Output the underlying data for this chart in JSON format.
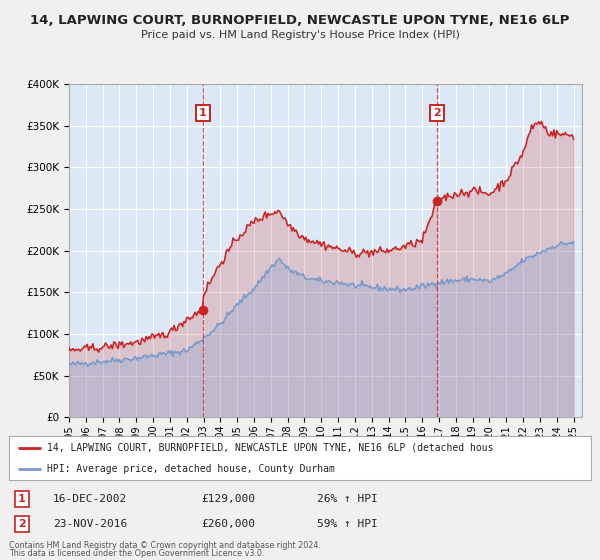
{
  "title": "14, LAPWING COURT, BURNOPFIELD, NEWCASTLE UPON TYNE, NE16 6LP",
  "subtitle": "Price paid vs. HM Land Registry's House Price Index (HPI)",
  "fig_bg_color": "#f0f0f0",
  "plot_bg_color": "#dce8f5",
  "grid_color": "#ffffff",
  "red_line_color": "#cc2222",
  "blue_line_color": "#7799cc",
  "purchase1_date_num": 2002.96,
  "purchase1_price": 129000,
  "purchase1_label": "1",
  "purchase1_date_str": "16-DEC-2002",
  "purchase1_hpi_str": "26% ↑ HPI",
  "purchase2_date_num": 2016.9,
  "purchase2_price": 260000,
  "purchase2_label": "2",
  "purchase2_date_str": "23-NOV-2016",
  "purchase2_hpi_str": "59% ↑ HPI",
  "purchase1_price_str": "£129,000",
  "purchase2_price_str": "£260,000",
  "ylim": [
    0,
    400000
  ],
  "xlim_start": 1995.0,
  "xlim_end": 2025.5,
  "ylabel_ticks": [
    0,
    50000,
    100000,
    150000,
    200000,
    250000,
    300000,
    350000,
    400000
  ],
  "ylabel_labels": [
    "£0",
    "£50K",
    "£100K",
    "£150K",
    "£200K",
    "£250K",
    "£300K",
    "£350K",
    "£400K"
  ],
  "xtick_years": [
    1995,
    1996,
    1997,
    1998,
    1999,
    2000,
    2001,
    2002,
    2003,
    2004,
    2005,
    2006,
    2007,
    2008,
    2009,
    2010,
    2011,
    2012,
    2013,
    2014,
    2015,
    2016,
    2017,
    2018,
    2019,
    2020,
    2021,
    2022,
    2023,
    2024,
    2025
  ],
  "legend_label_red": "14, LAPWING COURT, BURNOPFIELD, NEWCASTLE UPON TYNE, NE16 6LP (detached hous",
  "legend_label_blue": "HPI: Average price, detached house, County Durham",
  "footer1": "Contains HM Land Registry data © Crown copyright and database right 2024.",
  "footer2": "This data is licensed under the Open Government Licence v3.0."
}
